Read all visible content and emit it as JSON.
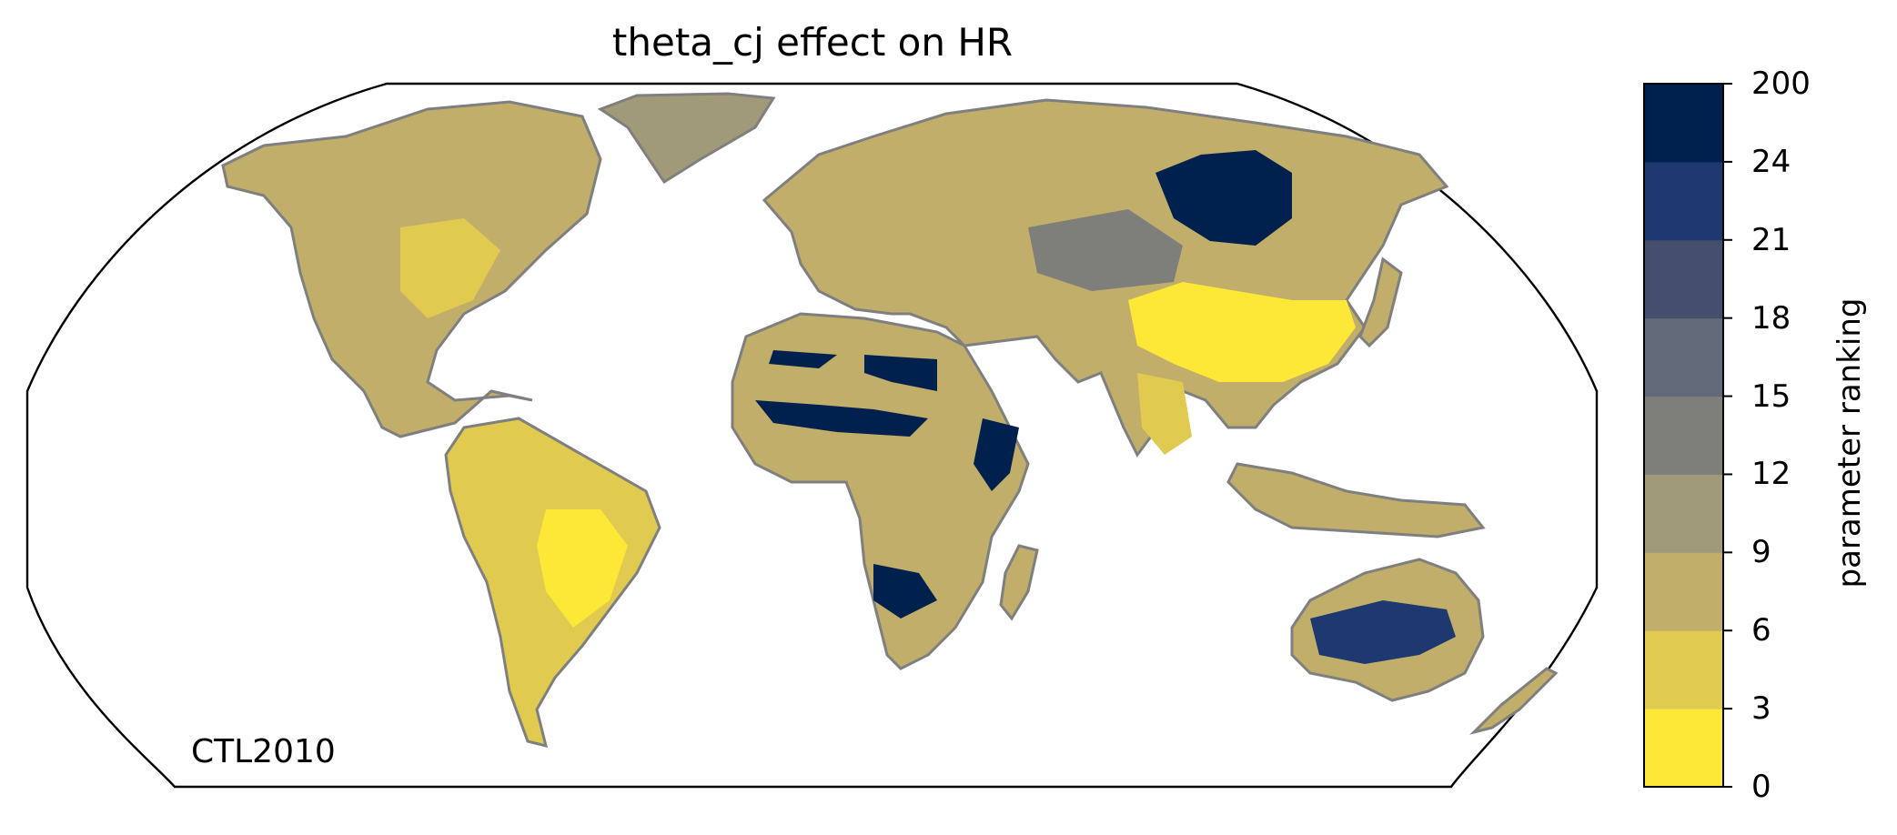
{
  "title": "theta_cj effect on HR",
  "run_label": "CTL2010",
  "colorbar": {
    "label": "parameter ranking",
    "tick_labels": [
      "0",
      "3",
      "6",
      "9",
      "12",
      "15",
      "18",
      "21",
      "24",
      "200"
    ],
    "colors": [
      "#fde737",
      "#e0ca4f",
      "#c0ae6a",
      "#a19a78",
      "#7e7e7a",
      "#626978",
      "#444f6e",
      "#1e3870",
      "#00204d"
    ]
  },
  "map": {
    "projection": "Robinson",
    "ocean_color": "#ffffff",
    "coastline_color": "#7f7f7f",
    "land_default_rank_band": 2
  }
}
